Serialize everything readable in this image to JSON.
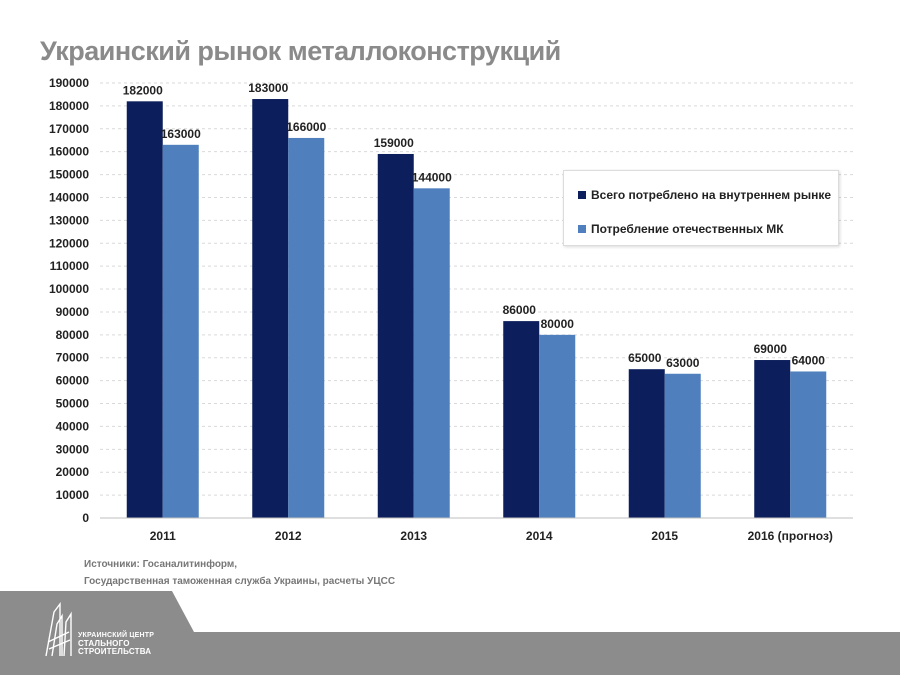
{
  "title": "Украинский рынок металлоконструкций",
  "colors": {
    "series1": "#0c1f5c",
    "series2": "#4f80bd",
    "footer": "#8c8c8c",
    "grid": "#d9d9d9"
  },
  "chart_data": {
    "type": "bar",
    "title": "Украинский рынок металлоконструкций",
    "categories": [
      "2011",
      "2012",
      "2013",
      "2014",
      "2015",
      "2016 (прогноз)"
    ],
    "series": [
      {
        "name": "Всего потреблено на внутреннем рынке",
        "values": [
          182000,
          183000,
          159000,
          86000,
          65000,
          69000
        ]
      },
      {
        "name": "Потребление отечественных МК",
        "values": [
          163000,
          166000,
          144000,
          80000,
          63000,
          64000
        ]
      }
    ],
    "ylim": [
      0,
      190000
    ],
    "ytick_step": 10000,
    "grid": true,
    "legend_position": "right",
    "xlabel": "",
    "ylabel": ""
  },
  "source": {
    "line1": "Источники: Госаналитинформ,",
    "line2": "Государственная таможенная служба Украины, расчеты УЦСС"
  },
  "logo": {
    "line1": "УКРАИНСКИЙ ЦЕНТР",
    "line2": "СТАЛЬНОГО",
    "line3": "СТРОИТЕЛЬСТВА"
  }
}
